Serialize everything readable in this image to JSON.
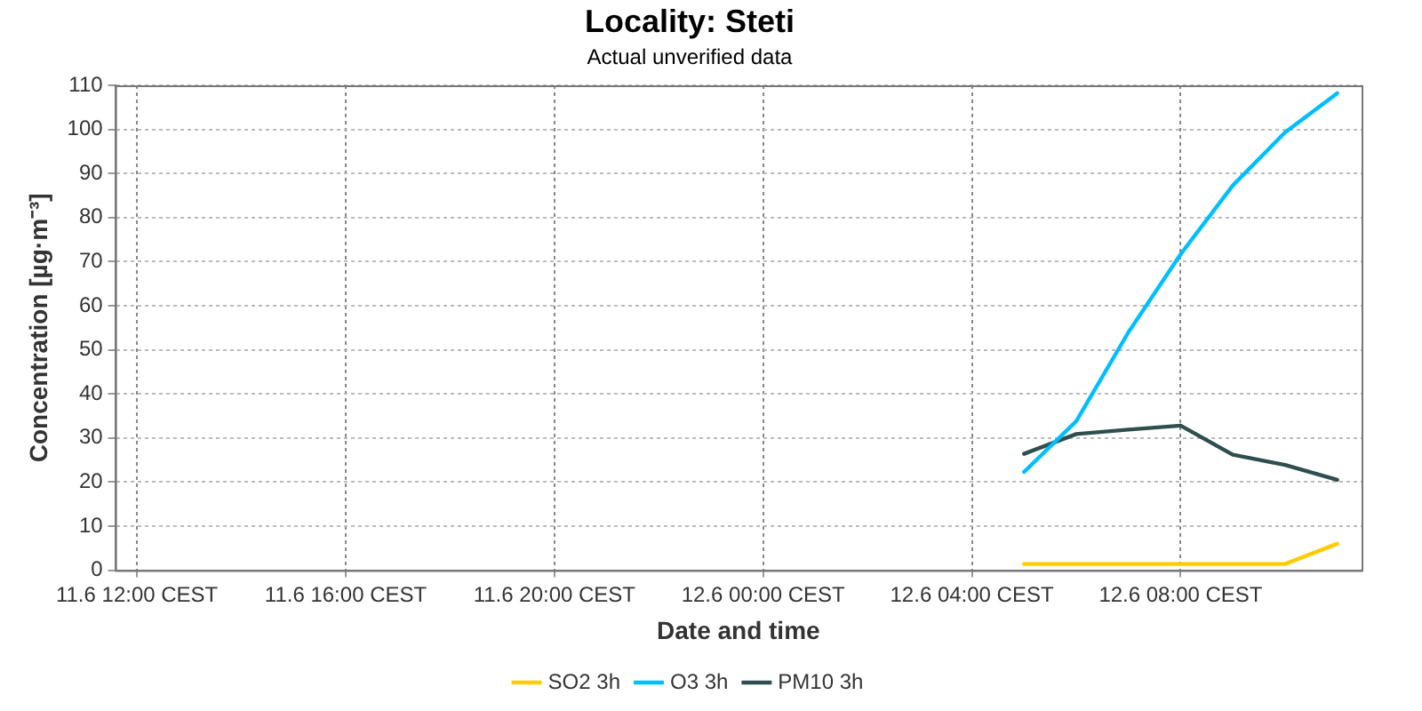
{
  "chart_data": {
    "type": "line",
    "title": "Locality: Steti",
    "subtitle": "Actual unverified data",
    "xlabel": "Date and time",
    "ylabel": "Concentration [µg·m⁻³]",
    "x": [
      "--06-12T05:00",
      "--06-12T06:00",
      "--06-12T07:00",
      "--06-12T08:00",
      "--06-12T09:00",
      "--06-12T10:00",
      "--06-12T11:00"
    ],
    "series": [
      {
        "name": "SO2 3h",
        "color": "#ffcc00",
        "values": [
          1.4,
          1.4,
          1.4,
          1.4,
          1.4,
          1.4,
          6
        ]
      },
      {
        "name": "O3 3h",
        "color": "#00bfff",
        "values": [
          22.3,
          33.8,
          54,
          71.7,
          87.3,
          99.3,
          108.2
        ]
      },
      {
        "name": "PM10 3h",
        "color": "#2f4f4f",
        "values": [
          26.4,
          30.9,
          31.9,
          32.8,
          26.2,
          23.9,
          20.5
        ]
      }
    ],
    "xlim": [
      "--06-11T11:35",
      "--06-12T11:28"
    ],
    "xticks": [
      {
        "value": "--06-11T12:00",
        "label": "11.6 12:00 CEST"
      },
      {
        "value": "--06-11T16:00",
        "label": "11.6 16:00 CEST"
      },
      {
        "value": "--06-11T20:00",
        "label": "11.6 20:00 CEST"
      },
      {
        "value": "--06-12T00:00",
        "label": "12.6 00:00 CEST"
      },
      {
        "value": "--06-12T04:00",
        "label": "12.6 04:00 CEST"
      },
      {
        "value": "--06-12T08:00",
        "label": "12.6 08:00 CEST"
      }
    ],
    "ylim": [
      0,
      110
    ],
    "yticks": [
      0,
      10,
      20,
      30,
      40,
      50,
      60,
      70,
      80,
      90,
      100,
      110
    ],
    "grid": true,
    "legend": "bottom",
    "marker": "none",
    "line_style": "solid"
  }
}
